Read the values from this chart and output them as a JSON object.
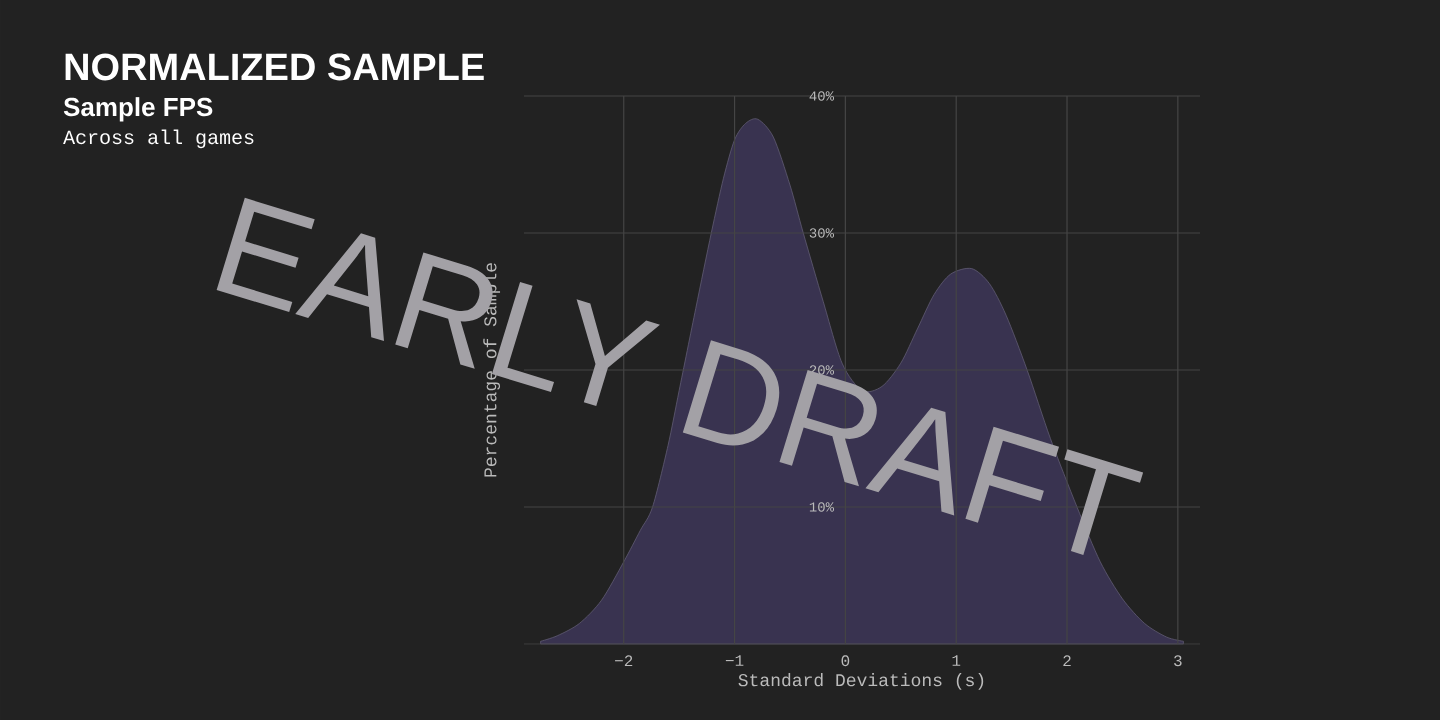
{
  "chart_data": {
    "type": "area",
    "title": "NORMALIZED SAMPLE",
    "subtitle": "Sample FPS",
    "annotations": [
      "Across all games",
      "EARLY DRAFT"
    ],
    "xlabel": "Standard Deviations (s)",
    "ylabel": "Percentage of Sample",
    "x": [
      -2.75,
      -2.6,
      -2.4,
      -2.2,
      -2.0,
      -1.85,
      -1.74,
      -1.6,
      -1.5,
      -1.35,
      -1.21,
      -1.1,
      -1.0,
      -0.9,
      -0.79,
      -0.65,
      -0.5,
      -0.38,
      -0.2,
      -0.03,
      0.15,
      0.33,
      0.5,
      0.65,
      0.8,
      0.95,
      1.14,
      1.3,
      1.45,
      1.64,
      1.85,
      2.09,
      2.3,
      2.5,
      2.7,
      2.9,
      3.05
    ],
    "series": [
      {
        "color": "#393350",
        "values": [
          0.2,
          0.6,
          1.5,
          3.2,
          6.0,
          8.3,
          10.0,
          14.5,
          18.5,
          24.5,
          30.0,
          34.0,
          36.8,
          38.0,
          38.3,
          37.0,
          33.5,
          30.0,
          25.0,
          20.5,
          18.5,
          18.8,
          20.5,
          23.0,
          25.5,
          27.0,
          27.4,
          26.3,
          24.0,
          20.0,
          15.0,
          10.0,
          6.0,
          3.3,
          1.5,
          0.5,
          0.2
        ]
      }
    ],
    "xlim": [
      -2.9,
      3.2
    ],
    "ylim": [
      0,
      40
    ],
    "xticks": [
      {
        "value": -2,
        "label": "−2"
      },
      {
        "value": -1,
        "label": "−1"
      },
      0,
      1,
      2,
      3
    ],
    "yticks": [
      {
        "value": 10,
        "label": "10%"
      },
      {
        "value": 20,
        "label": "20%"
      },
      {
        "value": 30,
        "label": "30%"
      },
      {
        "value": 40,
        "label": "40%"
      }
    ],
    "grid": true
  }
}
